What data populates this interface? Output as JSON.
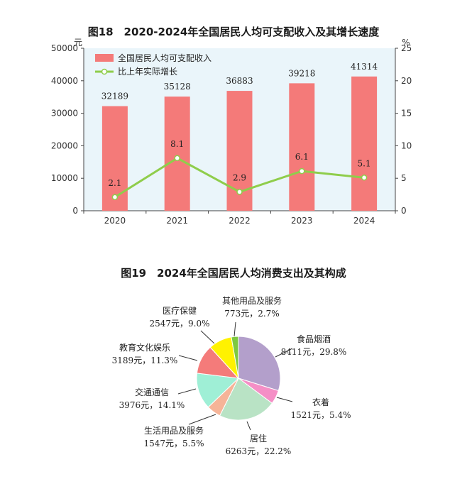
{
  "chart_data": [
    {
      "type": "bar",
      "title": "图18　2020-2024年全国居民人均可支配收入及其增长速度",
      "left_unit": "元",
      "right_unit": "%",
      "categories": [
        "2020",
        "2021",
        "2022",
        "2023",
        "2024"
      ],
      "series": [
        {
          "name": "全国居民人均可支配收入",
          "type": "bar",
          "axis": "left",
          "color": "#f47a79",
          "values": [
            32189,
            35128,
            36883,
            39218,
            41314
          ]
        },
        {
          "name": "比上年实际增长",
          "type": "line",
          "axis": "right",
          "color": "#8fcd4b",
          "values": [
            2.1,
            8.1,
            2.9,
            6.1,
            5.1
          ]
        }
      ],
      "value_labels": {
        "bars": [
          "32189",
          "35128",
          "36883",
          "39218",
          "41314"
        ],
        "line": [
          "2.1",
          "8.1",
          "2.9",
          "6.1",
          "5.1"
        ]
      },
      "ylim_left": [
        0,
        50000
      ],
      "yticks_left": [
        "0",
        "10000",
        "20000",
        "30000",
        "40000",
        "50000"
      ],
      "ylim_right": [
        0,
        25
      ],
      "yticks_right": [
        "0",
        "5",
        "10",
        "15",
        "20",
        "25"
      ],
      "legend_position": "top-left",
      "plot_background": "#eaf5fa"
    },
    {
      "type": "pie",
      "title": "图19　2024年全国居民人均消费支出及其构成",
      "slices": [
        {
          "name": "食品烟酒",
          "value": 8411,
          "percent": 29.8,
          "value_label": "8411元，29.8%",
          "color": "#b39fcb"
        },
        {
          "name": "衣着",
          "value": 1521,
          "percent": 5.4,
          "value_label": "1521元，5.4%",
          "color": "#f58fc6"
        },
        {
          "name": "居住",
          "value": 6263,
          "percent": 22.2,
          "value_label": "6263元，22.2%",
          "color": "#b9e3c5"
        },
        {
          "name": "生活用品及服务",
          "value": 1547,
          "percent": 5.5,
          "value_label": "1547元，5.5%",
          "color": "#f6b498"
        },
        {
          "name": "交通通信",
          "value": 3976,
          "percent": 14.1,
          "value_label": "3976元，14.1%",
          "color": "#9fefd6"
        },
        {
          "name": "教育文化娱乐",
          "value": 3189,
          "percent": 11.3,
          "value_label": "3189元，11.3%",
          "color": "#f47b7a"
        },
        {
          "name": "医疗保健",
          "value": 2547,
          "percent": 9.0,
          "value_label": "2547元，9.0%",
          "color": "#fff200"
        },
        {
          "name": "其他用品及服务",
          "value": 773,
          "percent": 2.7,
          "value_label": "773元，2.7%",
          "color": "#7dc940"
        }
      ]
    }
  ]
}
